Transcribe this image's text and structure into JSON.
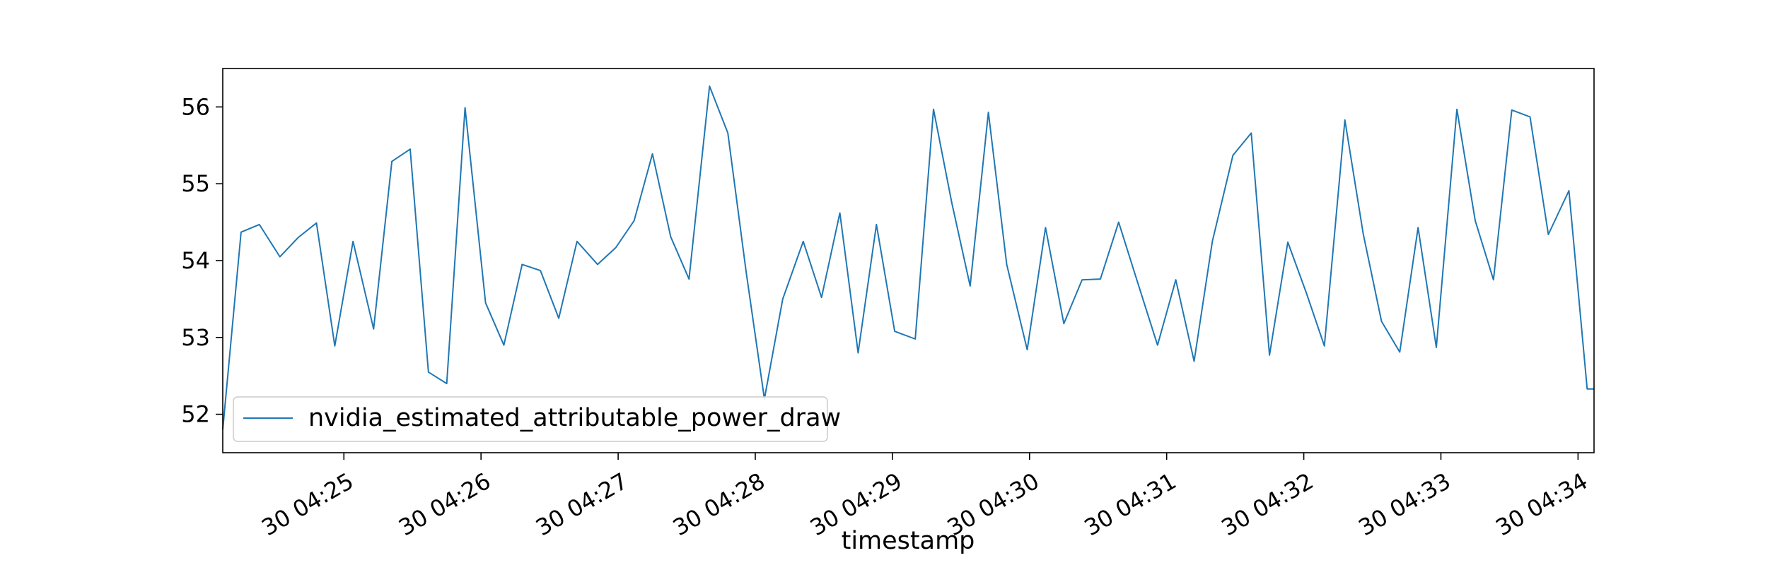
{
  "chart_data": {
    "type": "line",
    "title": "",
    "xlabel": "timestamp",
    "ylabel": "",
    "xlim": [
      "04:24:07",
      "04:34:07"
    ],
    "ylim": [
      51.5,
      56.5
    ],
    "grid": false,
    "legend_position": "lower-left",
    "x_ticks": [
      {
        "time": "04:25",
        "label": "30 04:25"
      },
      {
        "time": "04:26",
        "label": "30 04:26"
      },
      {
        "time": "04:27",
        "label": "30 04:27"
      },
      {
        "time": "04:28",
        "label": "30 04:28"
      },
      {
        "time": "04:29",
        "label": "30 04:29"
      },
      {
        "time": "04:30",
        "label": "30 04:30"
      },
      {
        "time": "04:31",
        "label": "30 04:31"
      },
      {
        "time": "04:32",
        "label": "30 04:32"
      },
      {
        "time": "04:33",
        "label": "30 04:33"
      },
      {
        "time": "04:34",
        "label": "30 04:34"
      }
    ],
    "y_ticks": [
      52,
      53,
      54,
      55,
      56
    ],
    "series": [
      {
        "name": "nvidia_estimated_attributable_power_draw",
        "color": "#1f77b4",
        "x": [
          "04:24:07",
          "04:24:15",
          "04:24:23",
          "04:24:32",
          "04:24:40",
          "04:24:48",
          "04:24:56",
          "04:25:04",
          "04:25:13",
          "04:25:21",
          "04:25:29",
          "04:25:37",
          "04:25:45",
          "04:25:53",
          "04:26:02",
          "04:26:10",
          "04:26:18",
          "04:26:26",
          "04:26:34",
          "04:26:42",
          "04:26:51",
          "04:26:59",
          "04:27:07",
          "04:27:15",
          "04:27:23",
          "04:27:31",
          "04:27:40",
          "04:27:48",
          "04:27:56",
          "04:28:04",
          "04:28:12",
          "04:28:21",
          "04:28:29",
          "04:28:37",
          "04:28:45",
          "04:28:53",
          "04:29:01",
          "04:29:10",
          "04:29:18",
          "04:29:26",
          "04:29:34",
          "04:29:42",
          "04:29:50",
          "04:29:59",
          "04:30:07",
          "04:30:15",
          "04:30:23",
          "04:30:31",
          "04:30:39",
          "04:30:48",
          "04:30:56",
          "04:31:04",
          "04:31:12",
          "04:31:20",
          "04:31:29",
          "04:31:37",
          "04:31:45",
          "04:31:53",
          "04:32:01",
          "04:32:09",
          "04:32:18",
          "04:32:26",
          "04:32:34",
          "04:32:42",
          "04:32:50",
          "04:32:58",
          "04:33:07",
          "04:33:15",
          "04:33:23",
          "04:33:31",
          "04:33:39",
          "04:33:47",
          "04:33:56",
          "04:34:04",
          "04:34:07"
        ],
        "y": [
          51.8,
          54.37,
          54.47,
          54.05,
          54.3,
          54.49,
          52.89,
          54.25,
          53.11,
          55.29,
          55.45,
          52.55,
          52.4,
          55.99,
          53.45,
          52.9,
          53.95,
          53.87,
          53.25,
          54.25,
          53.95,
          54.17,
          54.52,
          55.39,
          54.31,
          53.76,
          56.27,
          55.66,
          53.85,
          52.2,
          53.5,
          54.25,
          53.52,
          54.62,
          52.8,
          54.47,
          53.08,
          52.98,
          55.97,
          54.75,
          53.67,
          55.93,
          53.95,
          52.84,
          54.43,
          53.18,
          53.75,
          53.76,
          54.5,
          53.65,
          52.9,
          53.75,
          52.69,
          54.25,
          55.37,
          55.66,
          52.77,
          54.24,
          53.59,
          52.89,
          55.83,
          54.35,
          53.21,
          52.81,
          54.43,
          52.87,
          55.97,
          54.52,
          53.75,
          55.96,
          55.87,
          54.34,
          54.91,
          52.33,
          52.33
        ]
      }
    ]
  }
}
